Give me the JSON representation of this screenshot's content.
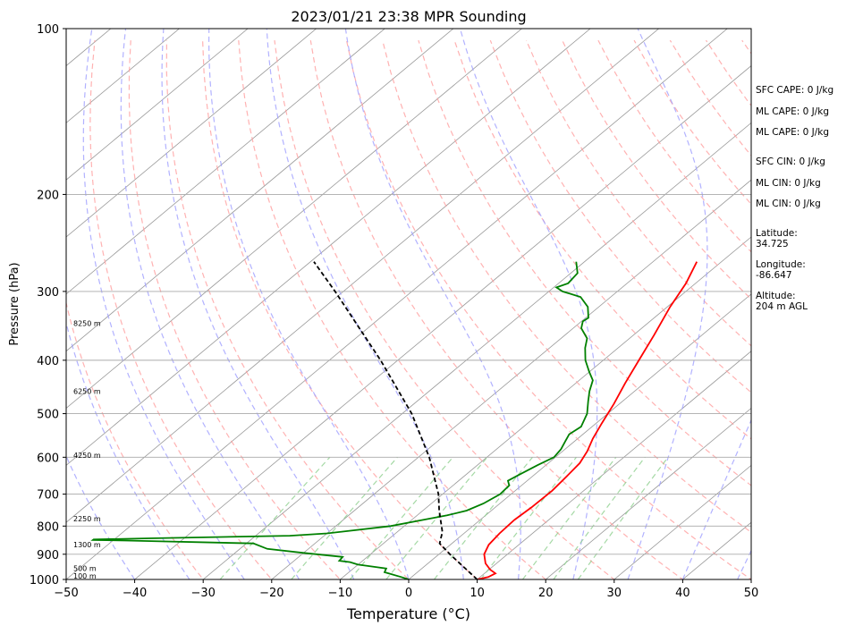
{
  "chart_data": {
    "type": "line",
    "title": "2023/01/21 23:38 MPR Sounding",
    "xlabel": "Temperature (°C)",
    "ylabel": "Pressure (hPa)",
    "xlim": [
      -50,
      50
    ],
    "ylim": [
      1000,
      100
    ],
    "y_scale": "log",
    "grid": true,
    "x_ticks": [
      -50,
      -40,
      -30,
      -20,
      -10,
      0,
      10,
      20,
      30,
      40,
      50
    ],
    "y_ticks": [
      1000,
      900,
      800,
      700,
      600,
      500,
      400,
      300,
      200,
      100
    ],
    "height_labels": [
      {
        "text": "100 m",
        "p": 985
      },
      {
        "text": "500 m",
        "p": 955
      },
      {
        "text": "1300 m",
        "p": 865
      },
      {
        "text": "2250 m",
        "p": 775
      },
      {
        "text": "4250 m",
        "p": 595
      },
      {
        "text": "6250 m",
        "p": 455
      },
      {
        "text": "8250 m",
        "p": 343
      }
    ],
    "series": [
      {
        "role": "temperature",
        "color": "#ff0000",
        "points": [
          {
            "p": 1000,
            "t": 10.0
          },
          {
            "p": 990,
            "t": 11.2
          },
          {
            "p": 975,
            "t": 11.6
          },
          {
            "p": 960,
            "t": 10.2
          },
          {
            "p": 935,
            "t": 8.4
          },
          {
            "p": 900,
            "t": 6.6
          },
          {
            "p": 865,
            "t": 5.6
          },
          {
            "p": 825,
            "t": 5.2
          },
          {
            "p": 780,
            "t": 5.0
          },
          {
            "p": 740,
            "t": 5.3
          },
          {
            "p": 690,
            "t": 5.4
          },
          {
            "p": 650,
            "t": 5.0
          },
          {
            "p": 615,
            "t": 4.6
          },
          {
            "p": 585,
            "t": 3.6
          },
          {
            "p": 555,
            "t": 2.2
          },
          {
            "p": 520,
            "t": 0.8
          },
          {
            "p": 480,
            "t": -0.8
          },
          {
            "p": 440,
            "t": -2.8
          },
          {
            "p": 400,
            "t": -4.8
          },
          {
            "p": 360,
            "t": -7.0
          },
          {
            "p": 320,
            "t": -9.6
          },
          {
            "p": 290,
            "t": -11.4
          },
          {
            "p": 265,
            "t": -13.6
          }
        ]
      },
      {
        "role": "dewpoint",
        "color": "#008000",
        "points": [
          {
            "p": 1000,
            "t": 0.0
          },
          {
            "p": 990,
            "t": -1.5
          },
          {
            "p": 970,
            "t": -4.8
          },
          {
            "p": 955,
            "t": -5.2
          },
          {
            "p": 940,
            "t": -10.0
          },
          {
            "p": 930,
            "t": -11.6
          },
          {
            "p": 925,
            "t": -13.4
          },
          {
            "p": 910,
            "t": -13.6
          },
          {
            "p": 895,
            "t": -20.0
          },
          {
            "p": 880,
            "t": -26.0
          },
          {
            "p": 860,
            "t": -29.0
          },
          {
            "p": 850,
            "t": -48.0
          },
          {
            "p": 848,
            "t": -53.0
          },
          {
            "p": 846,
            "t": -53.0
          },
          {
            "p": 842,
            "t": -45.0
          },
          {
            "p": 833,
            "t": -25.0
          },
          {
            "p": 825,
            "t": -20.0
          },
          {
            "p": 800,
            "t": -12.0
          },
          {
            "p": 780,
            "t": -8.4
          },
          {
            "p": 765,
            "t": -5.6
          },
          {
            "p": 750,
            "t": -3.6
          },
          {
            "p": 728,
            "t": -2.4
          },
          {
            "p": 700,
            "t": -1.6
          },
          {
            "p": 675,
            "t": -1.8
          },
          {
            "p": 662,
            "t": -2.8
          },
          {
            "p": 645,
            "t": -2.2
          },
          {
            "p": 620,
            "t": -1.2
          },
          {
            "p": 600,
            "t": -0.2
          },
          {
            "p": 580,
            "t": -0.6
          },
          {
            "p": 560,
            "t": -1.4
          },
          {
            "p": 545,
            "t": -2.0
          },
          {
            "p": 528,
            "t": -1.6
          },
          {
            "p": 500,
            "t": -3.0
          },
          {
            "p": 475,
            "t": -5.0
          },
          {
            "p": 455,
            "t": -6.6
          },
          {
            "p": 435,
            "t": -8.0
          },
          {
            "p": 420,
            "t": -10.0
          },
          {
            "p": 400,
            "t": -12.6
          },
          {
            "p": 380,
            "t": -14.8
          },
          {
            "p": 365,
            "t": -16.2
          },
          {
            "p": 350,
            "t": -18.8
          },
          {
            "p": 340,
            "t": -19.8
          },
          {
            "p": 335,
            "t": -19.6
          },
          {
            "p": 320,
            "t": -21.6
          },
          {
            "p": 307,
            "t": -24.4
          },
          {
            "p": 300,
            "t": -28.0
          },
          {
            "p": 295,
            "t": -29.6
          },
          {
            "p": 290,
            "t": -28.6
          },
          {
            "p": 278,
            "t": -29.0
          },
          {
            "p": 265,
            "t": -31.2
          }
        ]
      },
      {
        "role": "parcel",
        "color": "#000000",
        "points": [
          {
            "p": 1000,
            "t": 10.0
          },
          {
            "p": 900,
            "t": 1.6
          },
          {
            "p": 860,
            "t": -1.8
          },
          {
            "p": 820,
            "t": -3.4
          },
          {
            "p": 750,
            "t": -7.6
          },
          {
            "p": 700,
            "t": -10.6
          },
          {
            "p": 600,
            "t": -18.4
          },
          {
            "p": 500,
            "t": -28.6
          },
          {
            "p": 400,
            "t": -42.5
          },
          {
            "p": 300,
            "t": -61.2
          },
          {
            "p": 265,
            "t": -69.5
          }
        ]
      }
    ],
    "annotations": [
      "SFC CAPE: 0 J/kg",
      "ML CAPE: 0 J/kg",
      "ML CAPE: 0 J/kg",
      "SFC CIN: 0 J/kg",
      "ML CIN: 0 J/kg",
      "ML CIN: 0 J/kg",
      "Latitude:",
      "34.725",
      "Longitude:",
      "-86.647",
      "Altitude:",
      "204 m AGL"
    ]
  }
}
